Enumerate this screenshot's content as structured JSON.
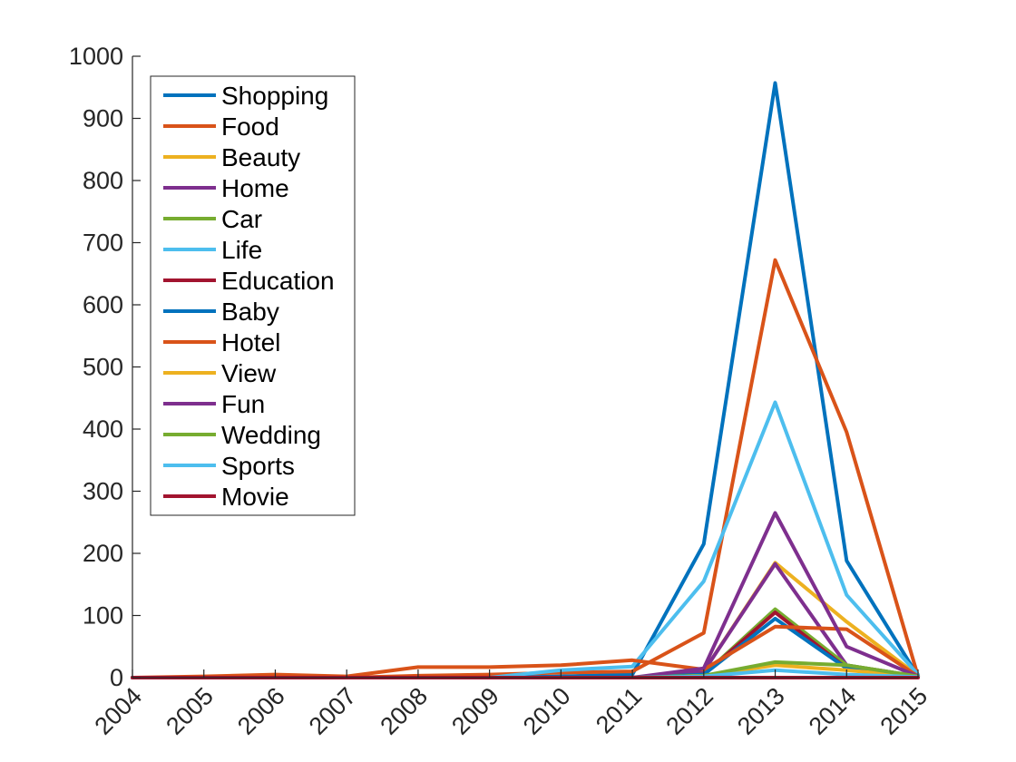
{
  "chart_data": {
    "type": "line",
    "title": "",
    "xlabel": "",
    "ylabel": "",
    "x": [
      "2004",
      "2005",
      "2006",
      "2007",
      "2008",
      "2009",
      "2010",
      "2011",
      "2012",
      "2013",
      "2014",
      "2015"
    ],
    "xlim": [
      2004,
      2015
    ],
    "ylim": [
      0,
      1000
    ],
    "yticks": [
      "0",
      "100",
      "200",
      "300",
      "400",
      "500",
      "600",
      "700",
      "800",
      "900",
      "1000"
    ],
    "grid": false,
    "legend_position": "top-left",
    "series": [
      {
        "name": "Shopping",
        "color": "#0072BD",
        "values": [
          0,
          0,
          0,
          0,
          0,
          0,
          2,
          5,
          215,
          957,
          188,
          2
        ]
      },
      {
        "name": "Food",
        "color": "#D95319",
        "values": [
          0,
          0,
          0,
          0,
          3,
          5,
          8,
          10,
          72,
          672,
          395,
          2
        ]
      },
      {
        "name": "Beauty",
        "color": "#EDB120",
        "values": [
          0,
          0,
          0,
          0,
          0,
          0,
          0,
          0,
          10,
          185,
          90,
          3
        ]
      },
      {
        "name": "Home",
        "color": "#7E2F8E",
        "values": [
          0,
          0,
          0,
          0,
          0,
          0,
          0,
          0,
          10,
          183,
          20,
          2
        ]
      },
      {
        "name": "Car",
        "color": "#77AC30",
        "values": [
          0,
          0,
          0,
          0,
          0,
          0,
          0,
          0,
          5,
          110,
          20,
          2
        ]
      },
      {
        "name": "Life",
        "color": "#4DBEEE",
        "values": [
          0,
          0,
          0,
          0,
          0,
          0,
          12,
          18,
          155,
          443,
          133,
          5
        ]
      },
      {
        "name": "Education",
        "color": "#A2142F",
        "values": [
          0,
          0,
          0,
          0,
          0,
          0,
          0,
          0,
          5,
          105,
          15,
          2
        ]
      },
      {
        "name": "Baby",
        "color": "#0072BD",
        "values": [
          0,
          0,
          0,
          0,
          0,
          0,
          0,
          0,
          5,
          95,
          15,
          2
        ]
      },
      {
        "name": "Hotel",
        "color": "#D95319",
        "values": [
          0,
          2,
          5,
          2,
          17,
          17,
          20,
          28,
          13,
          82,
          78,
          2
        ]
      },
      {
        "name": "View",
        "color": "#EDB120",
        "values": [
          0,
          0,
          0,
          0,
          0,
          0,
          0,
          0,
          3,
          20,
          12,
          1
        ]
      },
      {
        "name": "Fun",
        "color": "#7E2F8E",
        "values": [
          0,
          0,
          0,
          0,
          0,
          0,
          0,
          0,
          15,
          265,
          50,
          2
        ]
      },
      {
        "name": "Wedding",
        "color": "#77AC30",
        "values": [
          0,
          0,
          0,
          0,
          0,
          0,
          0,
          0,
          3,
          25,
          20,
          2
        ]
      },
      {
        "name": "Sports",
        "color": "#4DBEEE",
        "values": [
          0,
          0,
          0,
          0,
          0,
          0,
          0,
          0,
          2,
          12,
          5,
          1
        ]
      },
      {
        "name": "Movie",
        "color": "#A2142F",
        "values": [
          0,
          0,
          0,
          0,
          0,
          0,
          0,
          0,
          0,
          0,
          0,
          0
        ]
      }
    ]
  }
}
